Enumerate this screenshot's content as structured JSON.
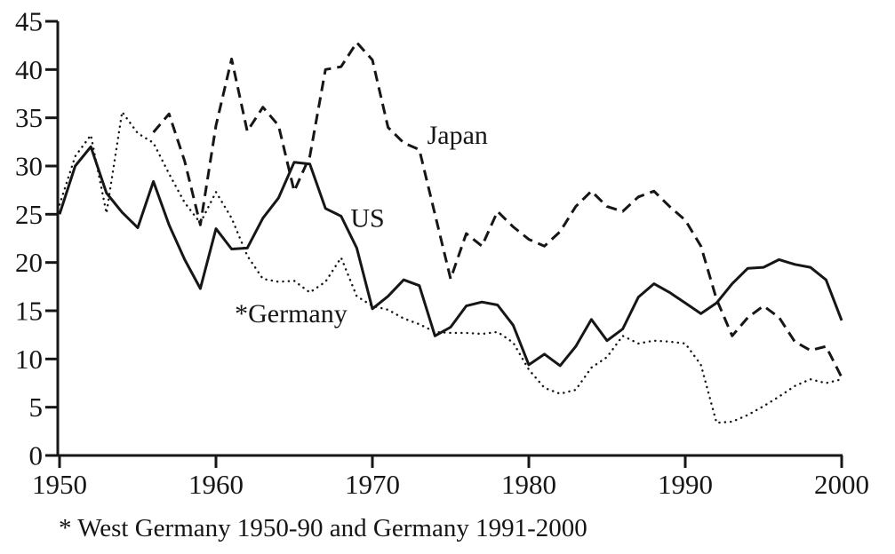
{
  "figure": {
    "footnote": "* West Germany 1950-90 and Germany 1991-2000"
  },
  "chart_data": {
    "type": "line",
    "title": "",
    "xlabel": "",
    "ylabel": "",
    "xlim": [
      1950,
      2000
    ],
    "ylim": [
      0,
      45
    ],
    "x_ticks": [
      1950,
      1960,
      1970,
      1980,
      1990,
      2000
    ],
    "y_ticks": [
      0,
      5,
      10,
      15,
      20,
      25,
      30,
      35,
      40,
      45
    ],
    "grid": false,
    "legend_position": "inline-annotations",
    "line_color": "#161616",
    "series": [
      {
        "name": "US",
        "style": "solid",
        "start_year": 1950,
        "values": [
          25.0,
          30.0,
          32.0,
          27.2,
          25.2,
          23.6,
          28.4,
          23.9,
          20.3,
          17.3,
          23.5,
          21.4,
          21.5,
          24.6,
          26.7,
          30.4,
          30.2,
          25.6,
          24.8,
          21.5,
          15.2,
          16.5,
          18.2,
          17.6,
          12.4,
          13.3,
          15.5,
          15.9,
          15.6,
          13.5,
          9.4,
          10.5,
          9.3,
          11.3,
          14.1,
          11.9,
          13.1,
          16.4,
          17.8,
          16.9,
          15.8,
          14.7,
          15.8,
          17.8,
          19.4,
          19.5,
          20.3,
          19.8,
          19.5,
          18.2,
          14.0
        ]
      },
      {
        "name": "Japan",
        "style": "dashed",
        "start_year": 1956,
        "values": [
          33.5,
          35.4,
          30.5,
          23.9,
          34.2,
          41.1,
          33.6,
          36.1,
          34.2,
          27.4,
          31.0,
          40.0,
          40.3,
          42.8,
          41.0,
          34.0,
          32.4,
          31.7,
          25.0,
          18.3,
          23.0,
          21.7,
          25.3,
          23.7,
          22.4,
          21.7,
          23.2,
          25.8,
          27.4,
          25.8,
          25.3,
          26.8,
          27.4,
          25.8,
          24.4,
          21.7,
          16.2,
          12.4,
          14.3,
          15.5,
          14.3,
          11.8,
          10.9,
          11.3,
          8.1
        ]
      },
      {
        "name": "Germany",
        "style": "dotted",
        "start_year": 1950,
        "values": [
          26.0,
          31.0,
          33.2,
          25.1,
          35.6,
          33.4,
          32.4,
          29.2,
          26.2,
          24.1,
          27.3,
          24.6,
          20.7,
          18.3,
          18.0,
          18.1,
          16.9,
          18.0,
          20.5,
          16.5,
          15.5,
          15.1,
          14.2,
          13.6,
          12.8,
          12.7,
          12.7,
          12.6,
          12.8,
          11.7,
          8.9,
          7.0,
          6.4,
          6.8,
          9.1,
          10.2,
          12.4,
          11.6,
          11.9,
          11.8,
          11.6,
          9.4,
          3.4,
          3.5,
          4.2,
          5.1,
          6.1,
          7.2,
          7.9,
          7.5,
          7.9
        ]
      }
    ],
    "annotations": [
      {
        "text": "Japan",
        "x": 1973.5,
        "y": 32.3
      },
      {
        "text": "US",
        "x": 1968.6,
        "y": 23.7
      },
      {
        "text": "*Germany",
        "x": 1961.2,
        "y": 13.8
      }
    ]
  }
}
